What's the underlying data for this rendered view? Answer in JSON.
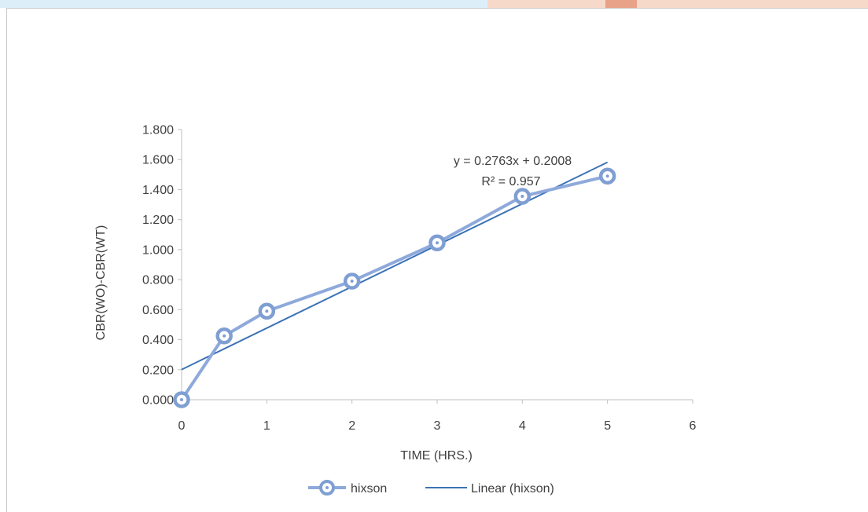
{
  "colors": {
    "series_line": "#8EA9DB",
    "series_marker_stroke": "#7F9FD3",
    "trendline": "#3C72B6",
    "axis": "#BFBFBF",
    "text": "#404040",
    "frame": "#C9C9C9",
    "top_strip_left": "#DCEFF8",
    "top_strip_right": "#F7D9C9",
    "top_strip_accent": "#E8A287"
  },
  "chart_data": {
    "type": "scatter",
    "title": "",
    "xlabel": "TIME (HRS.)",
    "ylabel": "CBR(WO)-CBR(WT)",
    "xlim": [
      0,
      6
    ],
    "ylim": [
      0,
      1.8
    ],
    "x_ticks": [
      "0",
      "1",
      "2",
      "3",
      "4",
      "5",
      "6"
    ],
    "y_ticks": [
      "0.000",
      "0.200",
      "0.400",
      "0.600",
      "0.800",
      "1.000",
      "1.200",
      "1.400",
      "1.600",
      "1.800"
    ],
    "grid": false,
    "legend_position": "bottom",
    "series": [
      {
        "name": "hixson",
        "mode": "lines+markers",
        "x": [
          0,
          0.5,
          1,
          2,
          3,
          4,
          5
        ],
        "y": [
          0.0,
          0.425,
          0.59,
          0.79,
          1.045,
          1.355,
          1.49
        ]
      }
    ],
    "trendline": {
      "name": "Linear (hixson)",
      "slope": 0.2763,
      "intercept": 0.2008,
      "x_range": [
        0,
        5
      ],
      "equation_label": "y = 0.2763x + 0.2008",
      "r2_label": "R² = 0.957"
    }
  }
}
